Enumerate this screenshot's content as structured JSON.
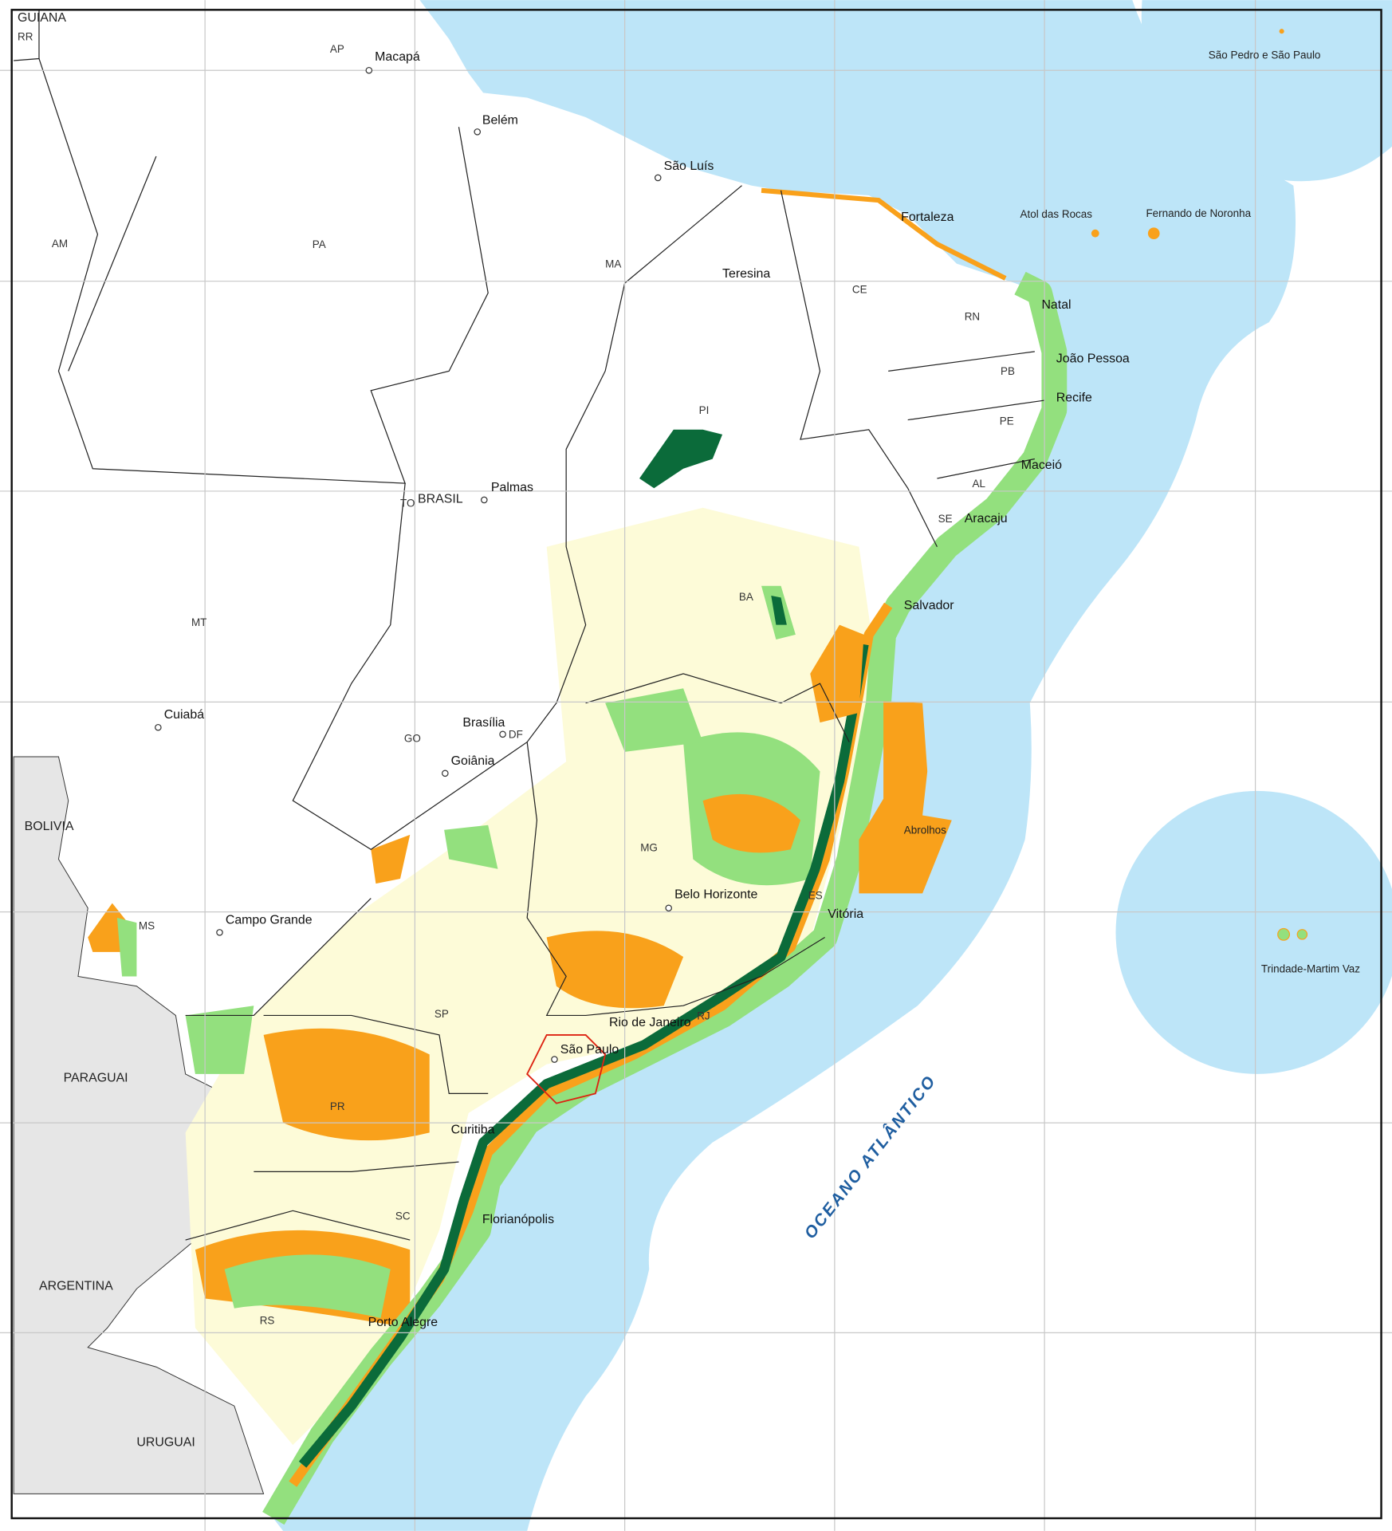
{
  "countries": [
    "GUIANA",
    "BOLIVIA",
    "PARAGUAI",
    "ARGENTINA",
    "URUGUAI",
    "BRASIL"
  ],
  "states": [
    "RR",
    "AP",
    "AM",
    "PA",
    "MA",
    "CE",
    "RN",
    "PB",
    "PI",
    "PE",
    "AL",
    "SE",
    "TO",
    "BA",
    "MT",
    "GO",
    "DF",
    "MG",
    "ES",
    "MS",
    "SP",
    "RJ",
    "PR",
    "SC",
    "RS"
  ],
  "cities": [
    "Macapá",
    "Belém",
    "São Luís",
    "Teresina",
    "Fortaleza",
    "Natal",
    "João Pessoa",
    "Recife",
    "Maceió",
    "Aracaju",
    "Salvador",
    "Palmas",
    "Brasília",
    "Goiânia",
    "Cuiabá",
    "Campo Grande",
    "Belo Horizonte",
    "Vitória",
    "Rio de Janeiro",
    "São Paulo",
    "Curitiba",
    "Florianópolis",
    "Porto Alegre",
    "Abrolhos"
  ],
  "islands": [
    "São Pedro e São Paulo",
    "Atol das Rocas",
    "Fernando de Noronha",
    "Trindade-Martim Vaz"
  ],
  "ocean_label": "OCEANO ATLÂNTICO"
}
